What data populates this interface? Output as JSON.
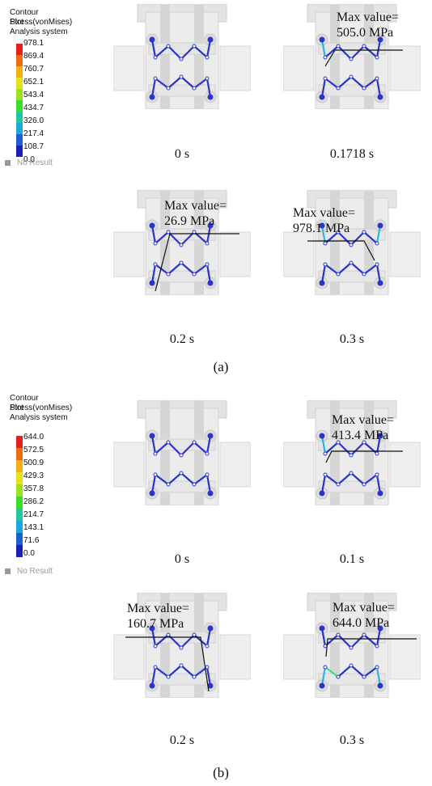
{
  "legends": [
    {
      "title": [
        "Contour Plot",
        "Stress(vonMises)",
        "Analysis system"
      ],
      "values": [
        "978.1",
        "869.4",
        "760.7",
        "652.1",
        "543.4",
        "434.7",
        "326.0",
        "217.4",
        "108.7",
        "0.0"
      ],
      "no_result": "No Result"
    },
    {
      "title": [
        "Contour Plot",
        "Stress(vonMises)",
        "Analysis system"
      ],
      "values": [
        "644.0",
        "572.5",
        "500.9",
        "429.3",
        "357.8",
        "286.2",
        "214.7",
        "143.1",
        "71.6",
        "0.0"
      ],
      "no_result": "No Result"
    }
  ],
  "colorbar": [
    "#e8201c",
    "#f06a16",
    "#f5b014",
    "#e8e11a",
    "#9be21c",
    "#3bdc2b",
    "#1fc8a0",
    "#1aa7d9",
    "#1b5fd2",
    "#1b1fb8"
  ],
  "subfigures": [
    {
      "label": "(a)",
      "panels": [
        {
          "time": "0 s",
          "annotation": null,
          "hot": "none"
        },
        {
          "time": "0.1718 s",
          "annotation": [
            "Max value=",
            "505.0 MPa"
          ],
          "hot": "top-left"
        },
        {
          "time": "0.2 s",
          "annotation": [
            "Max value=",
            "26.9 MPa"
          ],
          "hot": "none"
        },
        {
          "time": "0.3 s",
          "annotation": [
            "Max value=",
            "978.1 MPa"
          ],
          "hot": "top-both"
        }
      ]
    },
    {
      "label": "(b)",
      "panels": [
        {
          "time": "0 s",
          "annotation": null,
          "hot": "none"
        },
        {
          "time": "0.1 s",
          "annotation": [
            "Max value=",
            "413.4 MPa"
          ],
          "hot": "top-left"
        },
        {
          "time": "0.2 s",
          "annotation": [
            "Max value=",
            "160.7 MPa"
          ],
          "hot": "none"
        },
        {
          "time": "0.3 s",
          "annotation": [
            "Max value=",
            "644.0 MPa"
          ],
          "hot": "bottom-left"
        }
      ]
    }
  ]
}
